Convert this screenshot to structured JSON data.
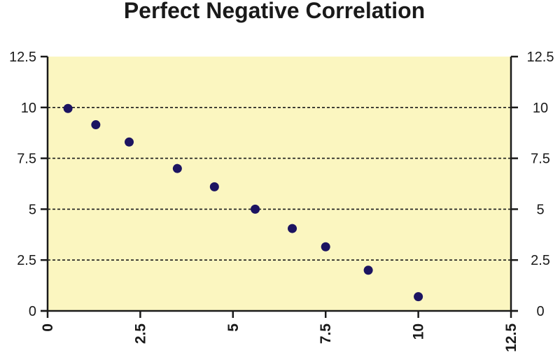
{
  "chart_data": {
    "type": "scatter",
    "title": "Perfect Negative Correlation",
    "xlabel": "",
    "ylabel": "",
    "xlim": [
      0,
      12.5
    ],
    "ylim": [
      0,
      12.5
    ],
    "x_ticks": [
      "0",
      "2.5",
      "5",
      "7.5",
      "10",
      "12.5"
    ],
    "y_ticks": [
      "0",
      "2.5",
      "5",
      "7.5",
      "10",
      "12.5"
    ],
    "y_ticks_right": [
      "0",
      "2.5",
      "5",
      "7.5",
      "10",
      "12.5"
    ],
    "grid": "horizontal dashed at 2.5, 5, 7.5, 10",
    "legend": "none",
    "colors": {
      "plot_background": "#fbf6c0",
      "marker": "#1c1461",
      "axis": "#1a1a1a"
    },
    "series": [
      {
        "x": [
          0.55,
          1.3,
          2.2,
          3.5,
          4.5,
          5.6,
          6.6,
          7.5,
          8.65,
          10.0
        ],
        "y": [
          9.95,
          9.15,
          8.3,
          7.0,
          6.1,
          5.0,
          4.05,
          3.15,
          2.0,
          0.7
        ]
      }
    ]
  }
}
